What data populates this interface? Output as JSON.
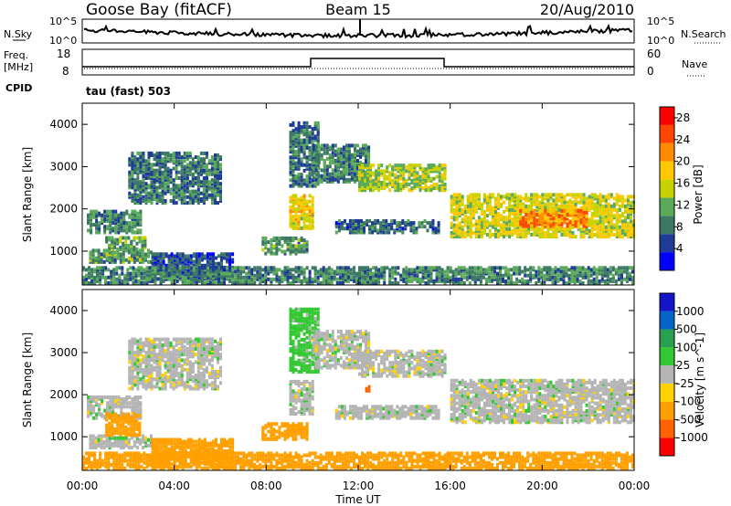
{
  "header": {
    "station": "Goose Bay (fitACF)",
    "beam": "Beam 15",
    "date": "20/Aug/2010"
  },
  "noise_panel": {
    "left_label": "N.Sky",
    "right_label": "N.Search",
    "left_ticks": [
      "10^5",
      "10^0"
    ],
    "right_ticks": [
      "10^5",
      "10^0"
    ]
  },
  "freq_panel": {
    "left_label_line1": "Freq.",
    "left_label_line2": "[MHz]",
    "left_ticks": [
      "18",
      "8"
    ],
    "right_label": "Nave",
    "right_ticks": [
      "60",
      "0"
    ],
    "cpid_label": "CPID",
    "mode_label": "tau (fast) 503"
  },
  "colors": {
    "power_scale": [
      "#0000ff",
      "#1e3c96",
      "#3c7864",
      "#5aaa5a",
      "#c8d200",
      "#ffc800",
      "#ff8c00",
      "#ff4600",
      "#ff0000"
    ],
    "velocity_scale": [
      "#ff0000",
      "#ff6400",
      "#ffa000",
      "#ffd200",
      "#b4b4b4",
      "#32c832",
      "#28a050",
      "#0064c8",
      "#1414c8"
    ]
  },
  "chart_data": [
    {
      "type": "heatmap",
      "title": "Power",
      "ylabel": "Slant Range [km]",
      "xlabel": "Time UT",
      "x_ticks": [
        "00:00",
        "04:00",
        "08:00",
        "12:00",
        "16:00",
        "20:00",
        "00:00"
      ],
      "xlim": [
        0,
        24
      ],
      "y_ticks": [
        1000,
        2000,
        3000,
        4000
      ],
      "ylim": [
        200,
        4500
      ],
      "colorbar": {
        "label": "Power [dB]",
        "ticks": [
          4,
          8,
          12,
          16,
          20,
          24,
          28
        ],
        "range": [
          0,
          30
        ]
      },
      "regions": [
        {
          "t0": 0.3,
          "t1": 3.0,
          "r0": 700,
          "r1": 1000,
          "level": 10
        },
        {
          "t0": 0.2,
          "t1": 2.5,
          "r0": 1400,
          "r1": 1900,
          "level": 9
        },
        {
          "t0": 1.0,
          "t1": 2.8,
          "r0": 1000,
          "r1": 1300,
          "level": 11
        },
        {
          "t0": 2.0,
          "t1": 6.0,
          "r0": 2100,
          "r1": 3300,
          "level": 8
        },
        {
          "t0": 3.0,
          "t1": 6.5,
          "r0": 300,
          "r1": 900,
          "level": 6
        },
        {
          "t0": 7.8,
          "t1": 9.8,
          "r0": 900,
          "r1": 1300,
          "level": 10
        },
        {
          "t0": 9.0,
          "t1": 10.0,
          "r0": 1500,
          "r1": 2300,
          "level": 17
        },
        {
          "t0": 9.0,
          "t1": 10.3,
          "r0": 2500,
          "r1": 4000,
          "level": 8
        },
        {
          "t0": 10.0,
          "t1": 12.5,
          "r0": 2600,
          "r1": 3500,
          "level": 9
        },
        {
          "t0": 12.0,
          "t1": 15.8,
          "r0": 2400,
          "r1": 3000,
          "level": 14
        },
        {
          "t0": 11.0,
          "t1": 15.5,
          "r0": 1400,
          "r1": 1700,
          "level": 7
        },
        {
          "t0": 16.0,
          "t1": 24.0,
          "r0": 1300,
          "r1": 2300,
          "level": 16
        },
        {
          "t0": 19.0,
          "t1": 22.0,
          "r0": 1550,
          "r1": 1950,
          "level": 22
        },
        {
          "t0": 0.0,
          "t1": 24.0,
          "r0": 200,
          "r1": 600,
          "level": 9
        }
      ]
    },
    {
      "type": "heatmap",
      "title": "Velocity",
      "ylabel": "Slant Range [km]",
      "xlabel": "Time UT",
      "x_ticks": [
        "00:00",
        "04:00",
        "08:00",
        "12:00",
        "16:00",
        "20:00",
        "00:00"
      ],
      "xlim": [
        0,
        24
      ],
      "y_ticks": [
        1000,
        2000,
        3000,
        4000
      ],
      "ylim": [
        200,
        4500
      ],
      "colorbar": {
        "label": "Velocity [m s^-1]",
        "ticks": [
          1000,
          500,
          100,
          25,
          -25,
          -100,
          -500,
          -1000
        ]
      },
      "regions": [
        {
          "t0": 0.3,
          "t1": 3.0,
          "r0": 700,
          "r1": 1000,
          "v": 0
        },
        {
          "t0": 0.2,
          "t1": 2.5,
          "r0": 1400,
          "r1": 1900,
          "v": 0
        },
        {
          "t0": 1.0,
          "t1": 2.5,
          "r0": 1000,
          "r1": 1500,
          "v": -150
        },
        {
          "t0": 2.0,
          "t1": 6.0,
          "r0": 2100,
          "r1": 3300,
          "v": 0
        },
        {
          "t0": 3.0,
          "t1": 6.5,
          "r0": 300,
          "r1": 900,
          "v": -200
        },
        {
          "t0": 7.8,
          "t1": 9.8,
          "r0": 900,
          "r1": 1300,
          "v": -250
        },
        {
          "t0": 9.0,
          "t1": 10.0,
          "r0": 1500,
          "r1": 2300,
          "v": 0
        },
        {
          "t0": 9.0,
          "t1": 10.3,
          "r0": 2500,
          "r1": 4000,
          "v": 50
        },
        {
          "t0": 10.0,
          "t1": 12.5,
          "r0": 2600,
          "r1": 3500,
          "v": 0
        },
        {
          "t0": 12.0,
          "t1": 15.8,
          "r0": 2400,
          "r1": 3000,
          "v": 0
        },
        {
          "t0": 11.0,
          "t1": 15.5,
          "r0": 1400,
          "r1": 1700,
          "v": 0
        },
        {
          "t0": 16.0,
          "t1": 24.0,
          "r0": 1300,
          "r1": 2300,
          "v": 0
        },
        {
          "t0": 12.3,
          "t1": 12.5,
          "r0": 2050,
          "r1": 2200,
          "v": -800
        },
        {
          "t0": 0.0,
          "t1": 24.0,
          "r0": 200,
          "r1": 600,
          "v": -150
        }
      ]
    }
  ]
}
